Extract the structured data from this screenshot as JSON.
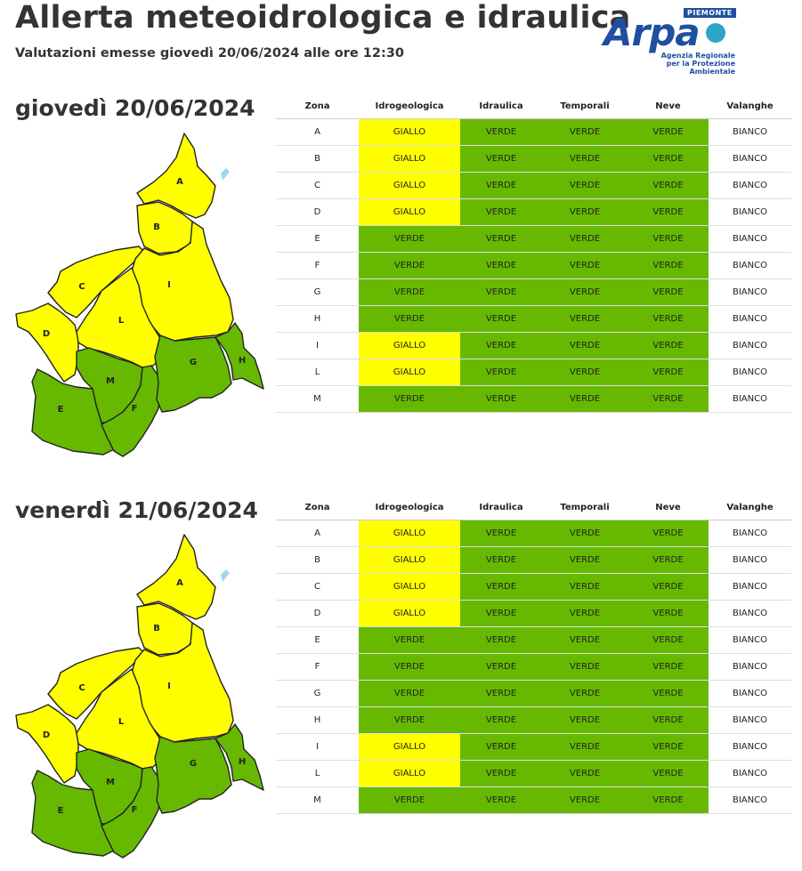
{
  "header": {
    "title": "Allerta meteoidrologica e idraulica",
    "subtitle": "Valutazioni emesse giovedì 20/06/2024 alle ore 12:30"
  },
  "logo": {
    "word": "Arpa",
    "badge": "PIEMONTE",
    "line1": "Agenzia Regionale",
    "line2": "per la Protezione Ambientale"
  },
  "columns": [
    "Zona",
    "Idrogeologica",
    "Idraulica",
    "Temporali",
    "Neve",
    "Valanghe"
  ],
  "colors": {
    "GIALLO": "#ffff00",
    "VERDE": "#66b900",
    "BIANCO": "#ffffff"
  },
  "days": [
    {
      "title": "giovedì 20/06/2024",
      "zone_colors": {
        "A": "GIALLO",
        "B": "GIALLO",
        "C": "GIALLO",
        "D": "GIALLO",
        "E": "VERDE",
        "F": "VERDE",
        "G": "VERDE",
        "H": "VERDE",
        "I": "GIALLO",
        "L": "GIALLO",
        "M": "VERDE"
      },
      "rows": [
        [
          "A",
          "GIALLO",
          "VERDE",
          "VERDE",
          "VERDE",
          "BIANCO"
        ],
        [
          "B",
          "GIALLO",
          "VERDE",
          "VERDE",
          "VERDE",
          "BIANCO"
        ],
        [
          "C",
          "GIALLO",
          "VERDE",
          "VERDE",
          "VERDE",
          "BIANCO"
        ],
        [
          "D",
          "GIALLO",
          "VERDE",
          "VERDE",
          "VERDE",
          "BIANCO"
        ],
        [
          "E",
          "VERDE",
          "VERDE",
          "VERDE",
          "VERDE",
          "BIANCO"
        ],
        [
          "F",
          "VERDE",
          "VERDE",
          "VERDE",
          "VERDE",
          "BIANCO"
        ],
        [
          "G",
          "VERDE",
          "VERDE",
          "VERDE",
          "VERDE",
          "BIANCO"
        ],
        [
          "H",
          "VERDE",
          "VERDE",
          "VERDE",
          "VERDE",
          "BIANCO"
        ],
        [
          "I",
          "GIALLO",
          "VERDE",
          "VERDE",
          "VERDE",
          "BIANCO"
        ],
        [
          "L",
          "GIALLO",
          "VERDE",
          "VERDE",
          "VERDE",
          "BIANCO"
        ],
        [
          "M",
          "VERDE",
          "VERDE",
          "VERDE",
          "VERDE",
          "BIANCO"
        ]
      ]
    },
    {
      "title": "venerdì 21/06/2024",
      "zone_colors": {
        "A": "GIALLO",
        "B": "GIALLO",
        "C": "GIALLO",
        "D": "GIALLO",
        "E": "VERDE",
        "F": "VERDE",
        "G": "VERDE",
        "H": "VERDE",
        "I": "GIALLO",
        "L": "GIALLO",
        "M": "VERDE"
      },
      "rows": [
        [
          "A",
          "GIALLO",
          "VERDE",
          "VERDE",
          "VERDE",
          "BIANCO"
        ],
        [
          "B",
          "GIALLO",
          "VERDE",
          "VERDE",
          "VERDE",
          "BIANCO"
        ],
        [
          "C",
          "GIALLO",
          "VERDE",
          "VERDE",
          "VERDE",
          "BIANCO"
        ],
        [
          "D",
          "GIALLO",
          "VERDE",
          "VERDE",
          "VERDE",
          "BIANCO"
        ],
        [
          "E",
          "VERDE",
          "VERDE",
          "VERDE",
          "VERDE",
          "BIANCO"
        ],
        [
          "F",
          "VERDE",
          "VERDE",
          "VERDE",
          "VERDE",
          "BIANCO"
        ],
        [
          "G",
          "VERDE",
          "VERDE",
          "VERDE",
          "VERDE",
          "BIANCO"
        ],
        [
          "H",
          "VERDE",
          "VERDE",
          "VERDE",
          "VERDE",
          "BIANCO"
        ],
        [
          "I",
          "GIALLO",
          "VERDE",
          "VERDE",
          "VERDE",
          "BIANCO"
        ],
        [
          "L",
          "GIALLO",
          "VERDE",
          "VERDE",
          "VERDE",
          "BIANCO"
        ],
        [
          "M",
          "VERDE",
          "VERDE",
          "VERDE",
          "VERDE",
          "BIANCO"
        ]
      ]
    }
  ]
}
